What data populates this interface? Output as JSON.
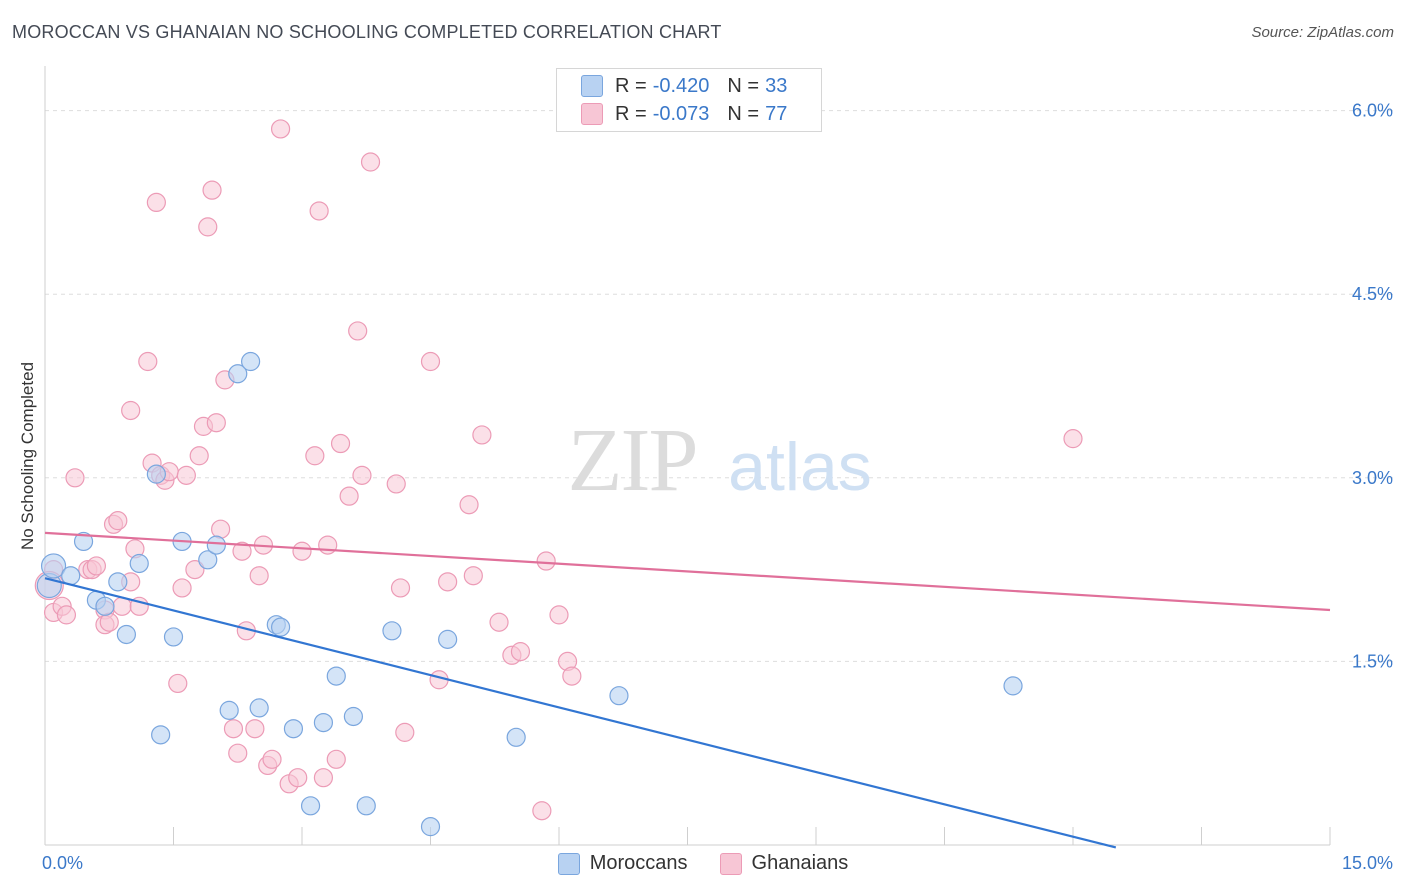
{
  "title": "MOROCCAN VS GHANAIAN NO SCHOOLING COMPLETED CORRELATION CHART",
  "source": "Source: ZipAtlas.com",
  "watermark": {
    "zip": "ZIP",
    "atlas": "atlas"
  },
  "legend": {
    "rows": [
      {
        "r_label": "R =",
        "r_value": "-0.420",
        "n_label": "N =",
        "n_value": "33"
      },
      {
        "r_label": "R =",
        "r_value": "-0.073",
        "n_label": "N =",
        "n_value": "77"
      }
    ]
  },
  "bottom_legend": {
    "moroccans": "Moroccans",
    "ghanaians": "Ghanaians"
  },
  "colors": {
    "moroccans_fill": "#b8d2f2",
    "moroccans_stroke": "#7aa6de",
    "moroccans_line": "#3276d2",
    "ghanaians_fill": "#f7c6d5",
    "ghanaians_stroke": "#ec9bb6",
    "ghanaians_line": "#e0709a",
    "axis_label": "#3a78c9",
    "grid": "#dddddd"
  },
  "chart_data": {
    "type": "scatter",
    "title": "MOROCCAN VS GHANAIAN NO SCHOOLING COMPLETED CORRELATION CHART",
    "xlabel": "",
    "ylabel": "No Schooling Completed",
    "xlim": [
      0,
      15
    ],
    "ylim": [
      0,
      6.25
    ],
    "x_tick_labels": [
      "0.0%",
      "15.0%"
    ],
    "y_ticks": [
      1.5,
      3.0,
      4.5,
      6.0
    ],
    "y_tick_labels": [
      "1.5%",
      "3.0%",
      "4.5%",
      "6.0%"
    ],
    "grid": "horizontal dashed",
    "legend_position": "top-center",
    "series": [
      {
        "name": "Moroccans",
        "r": -0.42,
        "n": 33,
        "trend": {
          "x": [
            0,
            12.5
          ],
          "y": [
            2.18,
            -0.02
          ]
        },
        "points": [
          [
            0.05,
            2.12
          ],
          [
            0.1,
            2.28
          ],
          [
            0.3,
            2.2
          ],
          [
            0.45,
            2.48
          ],
          [
            0.6,
            2.0
          ],
          [
            0.7,
            1.95
          ],
          [
            0.85,
            2.15
          ],
          [
            0.95,
            1.72
          ],
          [
            1.1,
            2.3
          ],
          [
            1.3,
            3.03
          ],
          [
            1.35,
            0.9
          ],
          [
            1.5,
            1.7
          ],
          [
            1.6,
            2.48
          ],
          [
            1.9,
            2.33
          ],
          [
            2.0,
            2.45
          ],
          [
            2.25,
            3.85
          ],
          [
            2.4,
            3.95
          ],
          [
            2.15,
            1.1
          ],
          [
            2.5,
            1.12
          ],
          [
            2.7,
            1.8
          ],
          [
            2.75,
            1.78
          ],
          [
            2.9,
            0.95
          ],
          [
            3.1,
            0.32
          ],
          [
            3.25,
            1.0
          ],
          [
            3.4,
            1.38
          ],
          [
            3.6,
            1.05
          ],
          [
            3.75,
            0.32
          ],
          [
            4.05,
            1.75
          ],
          [
            4.5,
            0.15
          ],
          [
            4.7,
            1.68
          ],
          [
            5.5,
            0.88
          ],
          [
            6.7,
            1.22
          ],
          [
            11.3,
            1.3
          ]
        ]
      },
      {
        "name": "Ghanaians",
        "r": -0.073,
        "n": 77,
        "trend": {
          "x": [
            0,
            15
          ],
          "y": [
            2.55,
            1.92
          ]
        },
        "points": [
          [
            0.1,
            2.25
          ],
          [
            0.1,
            1.9
          ],
          [
            0.2,
            1.95
          ],
          [
            0.25,
            1.88
          ],
          [
            0.35,
            3.0
          ],
          [
            0.5,
            2.25
          ],
          [
            0.55,
            2.25
          ],
          [
            0.6,
            2.28
          ],
          [
            0.7,
            1.92
          ],
          [
            0.7,
            1.8
          ],
          [
            0.75,
            1.82
          ],
          [
            0.8,
            2.62
          ],
          [
            0.85,
            2.65
          ],
          [
            0.9,
            1.95
          ],
          [
            1.0,
            2.15
          ],
          [
            1.0,
            3.55
          ],
          [
            1.05,
            2.42
          ],
          [
            1.1,
            1.95
          ],
          [
            1.2,
            3.95
          ],
          [
            1.25,
            3.12
          ],
          [
            1.3,
            5.25
          ],
          [
            1.35,
            3.02
          ],
          [
            1.4,
            2.98
          ],
          [
            1.45,
            3.05
          ],
          [
            1.55,
            1.32
          ],
          [
            1.6,
            2.1
          ],
          [
            1.65,
            3.02
          ],
          [
            1.75,
            2.25
          ],
          [
            1.8,
            3.18
          ],
          [
            1.85,
            3.42
          ],
          [
            1.9,
            5.05
          ],
          [
            1.95,
            5.35
          ],
          [
            2.0,
            3.45
          ],
          [
            2.05,
            2.58
          ],
          [
            2.1,
            3.8
          ],
          [
            2.2,
            0.95
          ],
          [
            2.25,
            0.75
          ],
          [
            2.3,
            2.4
          ],
          [
            2.35,
            1.75
          ],
          [
            2.45,
            0.95
          ],
          [
            2.5,
            2.2
          ],
          [
            2.55,
            2.45
          ],
          [
            2.6,
            0.65
          ],
          [
            2.65,
            0.7
          ],
          [
            2.75,
            5.85
          ],
          [
            2.85,
            0.5
          ],
          [
            2.95,
            0.55
          ],
          [
            3.0,
            2.4
          ],
          [
            3.15,
            3.18
          ],
          [
            3.2,
            5.18
          ],
          [
            3.25,
            0.55
          ],
          [
            3.3,
            2.45
          ],
          [
            3.4,
            0.7
          ],
          [
            3.45,
            3.28
          ],
          [
            3.55,
            2.85
          ],
          [
            3.65,
            4.2
          ],
          [
            3.7,
            3.02
          ],
          [
            3.8,
            5.58
          ],
          [
            4.1,
            2.95
          ],
          [
            4.15,
            2.1
          ],
          [
            4.2,
            0.92
          ],
          [
            4.5,
            3.95
          ],
          [
            4.6,
            1.35
          ],
          [
            4.7,
            2.15
          ],
          [
            4.95,
            2.78
          ],
          [
            5.0,
            2.2
          ],
          [
            5.1,
            3.35
          ],
          [
            5.3,
            1.82
          ],
          [
            5.45,
            1.55
          ],
          [
            5.55,
            1.58
          ],
          [
            5.8,
            0.28
          ],
          [
            5.85,
            2.32
          ],
          [
            6.0,
            1.88
          ],
          [
            6.1,
            1.5
          ],
          [
            6.15,
            1.38
          ],
          [
            12.0,
            3.32
          ],
          [
            0.05,
            2.12
          ]
        ]
      }
    ]
  }
}
